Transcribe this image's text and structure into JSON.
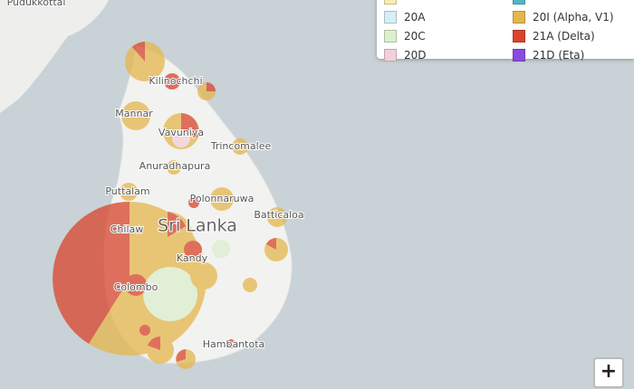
{
  "map": {
    "places": [
      {
        "label": "Pudukkottai"
      },
      {
        "label": "Kilinochchi"
      },
      {
        "label": "Mannar"
      },
      {
        "label": "Vavuniya"
      },
      {
        "label": "Trincomalee"
      },
      {
        "label": "Anuradhapura"
      },
      {
        "label": "Puttalam"
      },
      {
        "label": "Polonnaruwa"
      },
      {
        "label": "Batticaloa"
      },
      {
        "label": "Chilaw"
      },
      {
        "label": "Sri Lanka"
      },
      {
        "label": "Kandy"
      },
      {
        "label": "Colombo"
      },
      {
        "label": "Hambantota"
      }
    ],
    "legend": [
      {
        "label": "20A",
        "color": "#d6eef5"
      },
      {
        "label": "20I (Alpha, V1)",
        "color": "#e5b64c"
      },
      {
        "label": "20C",
        "color": "#dcefce"
      },
      {
        "label": "21A (Delta)",
        "color": "#d9442c"
      },
      {
        "label": "20D",
        "color": "#f3cfd9"
      },
      {
        "label": "21D (Eta)",
        "color": "#8a4be0"
      }
    ],
    "zoom_in": "+"
  }
}
